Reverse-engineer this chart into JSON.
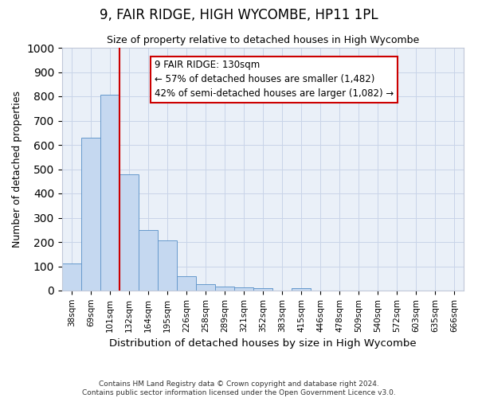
{
  "title": "9, FAIR RIDGE, HIGH WYCOMBE, HP11 1PL",
  "subtitle": "Size of property relative to detached houses in High Wycombe",
  "xlabel": "Distribution of detached houses by size in High Wycombe",
  "ylabel": "Number of detached properties",
  "bar_labels": [
    "38sqm",
    "69sqm",
    "101sqm",
    "132sqm",
    "164sqm",
    "195sqm",
    "226sqm",
    "258sqm",
    "289sqm",
    "321sqm",
    "352sqm",
    "383sqm",
    "415sqm",
    "446sqm",
    "478sqm",
    "509sqm",
    "540sqm",
    "572sqm",
    "603sqm",
    "635sqm",
    "666sqm"
  ],
  "bar_values": [
    110,
    630,
    805,
    480,
    250,
    207,
    60,
    27,
    18,
    12,
    10,
    0,
    10,
    0,
    0,
    0,
    0,
    0,
    0,
    0,
    0
  ],
  "bar_color": "#c5d8f0",
  "bar_edge_color": "#6699cc",
  "vline_x": 3.0,
  "vline_color": "#cc0000",
  "ylim": [
    0,
    1000
  ],
  "yticks": [
    0,
    100,
    200,
    300,
    400,
    500,
    600,
    700,
    800,
    900,
    1000
  ],
  "annotation_text": "9 FAIR RIDGE: 130sqm\n← 57% of detached houses are smaller (1,482)\n42% of semi-detached houses are larger (1,082) →",
  "annotation_box_color": "#ffffff",
  "annotation_box_edge": "#cc0000",
  "footer_line1": "Contains HM Land Registry data © Crown copyright and database right 2024.",
  "footer_line2": "Contains public sector information licensed under the Open Government Licence v3.0.",
  "plot_background": "#eaf0f8"
}
